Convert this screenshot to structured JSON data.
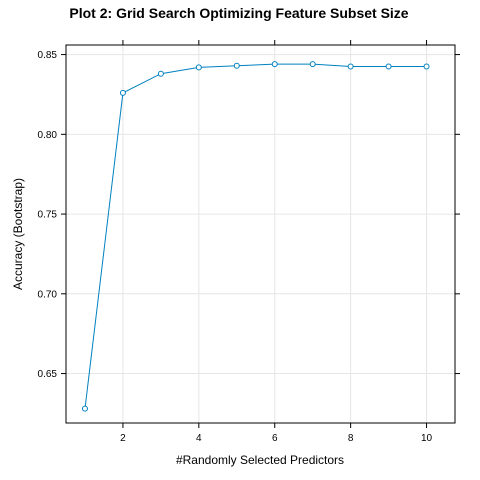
{
  "chart_data": {
    "type": "line",
    "title": "Plot 2: Grid Search Optimizing Feature Subset Size",
    "xlabel": "#Randomly Selected Predictors",
    "ylabel": "Accuracy (Bootstrap)",
    "x": [
      1,
      2,
      3,
      4,
      5,
      6,
      7,
      8,
      9,
      10
    ],
    "series": [
      {
        "values": [
          0.628,
          0.826,
          0.838,
          0.842,
          0.843,
          0.844,
          0.844,
          0.8425,
          0.8425,
          0.8425
        ]
      }
    ],
    "xlim": [
      0.5,
      10.75
    ],
    "ylim": [
      0.619,
      0.856
    ],
    "x_ticks": [
      2,
      4,
      6,
      8,
      10
    ],
    "y_ticks": [
      0.65,
      0.7,
      0.75,
      0.8,
      0.85
    ],
    "x_tick_labels": [
      "2",
      "4",
      "6",
      "8",
      "10"
    ],
    "y_tick_labels": [
      "0.65",
      "0.70",
      "0.75",
      "0.80",
      "0.85"
    ],
    "grid": true,
    "line_color": "#0080c0",
    "point_marker": "open-circle"
  }
}
